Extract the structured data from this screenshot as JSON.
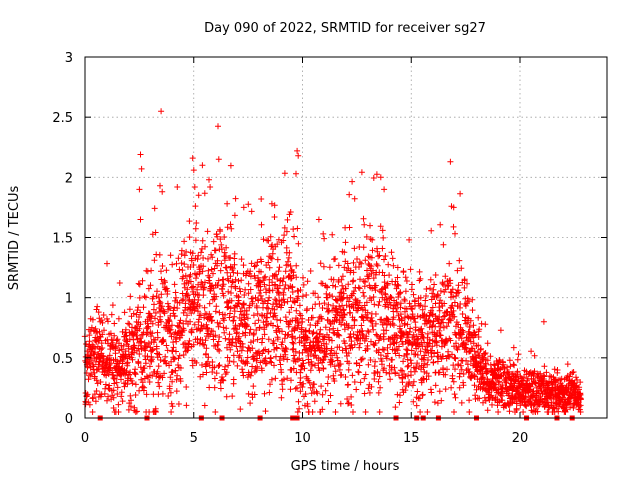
{
  "chart_data": {
    "type": "scatter",
    "title": "Day 090 of 2022, SRMTID for receiver sg27",
    "xlabel": "GPS time / hours",
    "ylabel": "SRMTID / TECUs",
    "xlim": [
      0,
      24
    ],
    "ylim": [
      0,
      3
    ],
    "xticks": [
      0,
      5,
      10,
      15,
      20
    ],
    "xtick_labels": [
      "0",
      "5",
      "10",
      "15",
      "20"
    ],
    "yticks": [
      0,
      0.5,
      1,
      1.5,
      2,
      2.5,
      3
    ],
    "ytick_labels": [
      "0",
      "0.5",
      "1",
      "1.5",
      "2",
      "2.5",
      "3"
    ],
    "grid": true,
    "marker": "+",
    "color": "#ff0000",
    "series": [
      {
        "name": "SRMTID",
        "profile": {
          "hours": [
            0,
            0.5,
            1,
            1.5,
            2,
            2.5,
            3,
            3.5,
            4,
            4.5,
            5,
            5.5,
            6,
            6.5,
            7,
            7.5,
            8,
            8.5,
            9,
            9.5,
            10,
            10.5,
            11,
            11.5,
            12,
            12.5,
            13,
            13.5,
            14,
            14.5,
            15,
            15.5,
            16,
            16.5,
            17,
            17.5,
            18,
            18.5,
            19,
            19.5,
            20,
            20.5,
            21,
            21.5,
            22,
            22.5,
            22.8
          ],
          "median": [
            0.42,
            0.5,
            0.45,
            0.38,
            0.5,
            0.62,
            0.55,
            0.75,
            0.65,
            0.9,
            1.0,
            0.85,
            0.9,
            0.95,
            0.8,
            0.7,
            0.8,
            0.95,
            0.85,
            0.9,
            0.65,
            0.55,
            0.72,
            0.7,
            0.82,
            0.8,
            0.85,
            0.9,
            0.78,
            0.72,
            0.62,
            0.6,
            0.75,
            0.7,
            0.82,
            0.72,
            0.45,
            0.3,
            0.3,
            0.26,
            0.22,
            0.22,
            0.22,
            0.2,
            0.18,
            0.22,
            0.15
          ],
          "spread": [
            0.18,
            0.22,
            0.2,
            0.18,
            0.22,
            0.3,
            0.3,
            0.35,
            0.3,
            0.4,
            0.4,
            0.38,
            0.4,
            0.38,
            0.32,
            0.32,
            0.35,
            0.4,
            0.35,
            0.4,
            0.32,
            0.3,
            0.32,
            0.3,
            0.35,
            0.32,
            0.35,
            0.4,
            0.32,
            0.3,
            0.28,
            0.28,
            0.32,
            0.3,
            0.35,
            0.32,
            0.22,
            0.12,
            0.12,
            0.1,
            0.1,
            0.1,
            0.1,
            0.1,
            0.08,
            0.08,
            0.06
          ]
        },
        "spikes": [
          {
            "x": 3.5,
            "y": 2.55
          },
          {
            "x": 2.55,
            "y": 2.19
          },
          {
            "x": 2.6,
            "y": 2.07
          },
          {
            "x": 2.5,
            "y": 1.9
          },
          {
            "x": 3.45,
            "y": 1.93
          },
          {
            "x": 3.55,
            "y": 1.88
          },
          {
            "x": 4.95,
            "y": 2.16
          },
          {
            "x": 5.0,
            "y": 2.06
          },
          {
            "x": 6.15,
            "y": 2.15
          },
          {
            "x": 5.05,
            "y": 1.92
          },
          {
            "x": 5.7,
            "y": 1.98
          },
          {
            "x": 5.75,
            "y": 1.92
          },
          {
            "x": 9.75,
            "y": 2.22
          },
          {
            "x": 9.8,
            "y": 2.18
          },
          {
            "x": 9.7,
            "y": 2.03
          },
          {
            "x": 8.1,
            "y": 1.82
          },
          {
            "x": 13.6,
            "y": 2.0
          },
          {
            "x": 13.75,
            "y": 1.9
          },
          {
            "x": 16.8,
            "y": 2.13
          },
          {
            "x": 16.85,
            "y": 1.76
          },
          {
            "x": 16.95,
            "y": 1.75
          },
          {
            "x": 14.9,
            "y": 1.48
          },
          {
            "x": 10.95,
            "y": 1.53
          },
          {
            "x": 21.1,
            "y": 0.8
          },
          {
            "x": 2.55,
            "y": 1.65
          },
          {
            "x": 7.3,
            "y": 1.75
          }
        ],
        "gaps_hours": [
          0.7,
          2.85,
          5.35,
          6.3,
          8.05,
          9.55,
          9.75,
          14.3,
          15.25,
          15.55,
          16.25,
          18.0,
          20.3,
          21.7,
          22.4
        ]
      }
    ]
  }
}
